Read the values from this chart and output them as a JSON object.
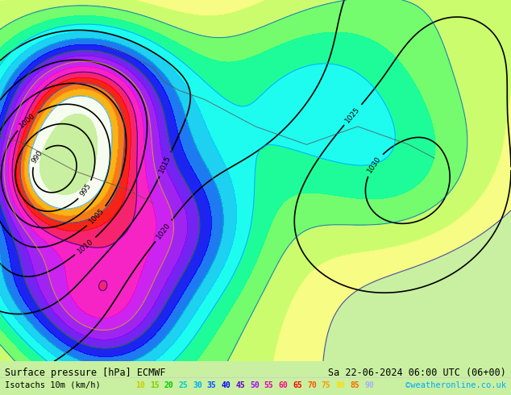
{
  "title_left": "Surface pressure [hPa] ECMWF",
  "title_right": "Sa 22-06-2024 06:00 UTC (06+00)",
  "legend_label": "Isotachs 10m (km/h)",
  "copyright": "©weatheronline.co.uk",
  "isotach_values": [
    10,
    15,
    20,
    25,
    30,
    35,
    40,
    45,
    50,
    55,
    60,
    65,
    70,
    75,
    80,
    85,
    90
  ],
  "isotach_colors": [
    "#ffff00",
    "#aaff00",
    "#00ff00",
    "#00ffaa",
    "#00ffff",
    "#00aaff",
    "#0055ff",
    "#0000ff",
    "#5500ff",
    "#aa00ff",
    "#ff00ff",
    "#ff00aa",
    "#ff0055",
    "#ff0000",
    "#ff5500",
    "#ffaa00",
    "#ffffff"
  ],
  "bg_color": "#c8f0a0",
  "text_color": "#000000",
  "fig_width": 6.34,
  "fig_height": 4.9,
  "dpi": 100
}
